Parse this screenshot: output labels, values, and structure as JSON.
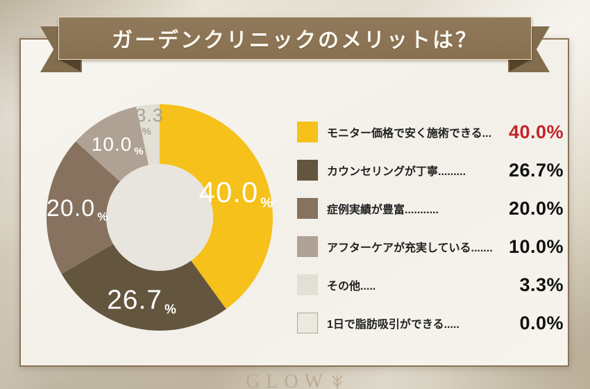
{
  "title": {
    "text": "ガーデンクリニックのメリットは？"
  },
  "chart_data": {
    "type": "pie",
    "donut": true,
    "title": "ガーデンクリニックのメリットは？",
    "categories": [
      "モニター価格で安く施術できる",
      "カウンセリングが丁寧",
      "症例実績が豊富",
      "アフターケアが充実している",
      "その他",
      "1日で脂肪吸引ができる"
    ],
    "values": [
      40.0,
      26.7,
      20.0,
      10.0,
      3.3,
      0.0
    ],
    "colors": [
      "#F5C11A",
      "#64553E",
      "#86725F",
      "#AFA294",
      "#E2DFD4",
      "#ECEADE"
    ],
    "zero_swatch_border": "#ACA896",
    "hole_color": "#E8E5DE",
    "small_label_color": "#A6A29A",
    "legend_position": "right",
    "start_angle_deg": 0,
    "direction": "clockwise"
  },
  "legend": {
    "items": [
      {
        "label": "モニター価格で安く施術できる...",
        "value": "40.0%",
        "highlight": true
      },
      {
        "label": "カウンセリングが丁寧.........",
        "value": "26.7%",
        "highlight": false
      },
      {
        "label": "症例実績が豊富...........",
        "value": "20.0%",
        "highlight": false
      },
      {
        "label": "アフターケアが充実している.......",
        "value": "10.0%",
        "highlight": false
      },
      {
        "label": "その他.....",
        "value": "3.3%",
        "highlight": false
      },
      {
        "label": "1日で脂肪吸引ができる.....",
        "value": "0.0%",
        "highlight": false
      }
    ]
  },
  "footer": {
    "logo": "GLOW"
  },
  "colors": {
    "ribbon": "#8A7254",
    "ribbon_fold": "#57432C",
    "card_border": "#8B7257",
    "accent_red": "#C5222A",
    "text_dark": "#212121"
  }
}
